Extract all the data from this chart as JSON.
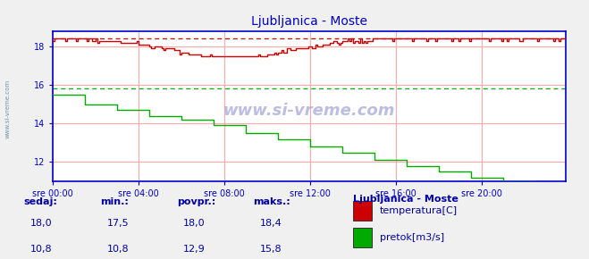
{
  "title": "Ljubljanica - Moste",
  "title_color": "#0000cc",
  "bg_color": "#f0f0f0",
  "plot_bg_color": "#ffffff",
  "xlabel_ticks": [
    "sre 00:00",
    "sre 04:00",
    "sre 08:00",
    "sre 12:00",
    "sre 16:00",
    "sre 20:00"
  ],
  "tick_positions": [
    0,
    48,
    96,
    144,
    192,
    240
  ],
  "total_points": 288,
  "ylim": [
    11.0,
    18.8
  ],
  "yticks": [
    12,
    14,
    16,
    18
  ],
  "temp_color": "#cc0000",
  "flow_color": "#00aa00",
  "grid_h_color": "#ffaaaa",
  "grid_v_color": "#ffaaaa",
  "temp_max_line": 18.4,
  "flow_max_line": 15.8,
  "spine_color": "#0000cc",
  "tick_color": "#0000cc",
  "watermark": "www.si-vreme.com",
  "legend_title": "Ljubljanica - Moste",
  "legend_items": [
    "temperatura[C]",
    "pretok[m3/s]"
  ],
  "legend_colors": [
    "#cc0000",
    "#00aa00"
  ],
  "stats_headers": [
    "sedaj:",
    "min.:",
    "povpr.:",
    "maks.:"
  ],
  "stats_temp": [
    "18,0",
    "17,5",
    "18,0",
    "18,4"
  ],
  "stats_flow": [
    "10,8",
    "10,8",
    "12,9",
    "15,8"
  ],
  "stats_color": "#0000aa",
  "figsize": [
    6.59,
    2.9
  ],
  "dpi": 100
}
